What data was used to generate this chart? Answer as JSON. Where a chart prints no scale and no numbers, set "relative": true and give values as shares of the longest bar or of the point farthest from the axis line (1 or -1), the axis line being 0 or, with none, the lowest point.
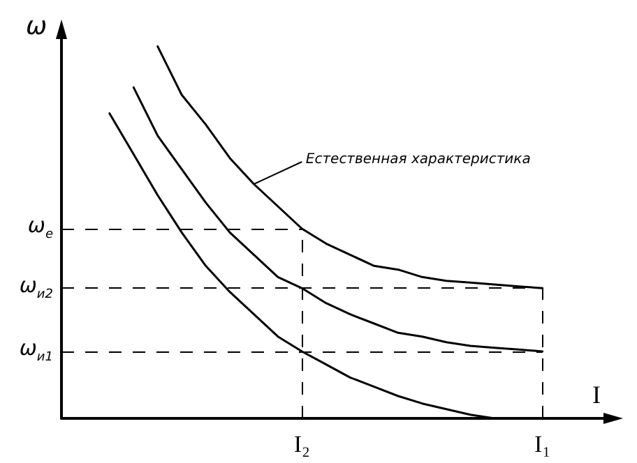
{
  "chart_data": {
    "type": "line",
    "relative": true,
    "ylabel": "ω",
    "xlabel": "I",
    "marker": "none",
    "categories": [
      null,
      null,
      null,
      null,
      null,
      null,
      null,
      null,
      null,
      null,
      "I₂",
      null,
      null,
      null,
      null,
      null,
      null,
      null,
      null,
      null,
      "I₁",
      null,
      null,
      null
    ],
    "series": [
      {
        "color": "#000000",
        "values": [
          null,
          null,
          null,
          null,
          1.0,
          0.87,
          0.79,
          0.7,
          0.63,
          0.57,
          0.51,
          0.47,
          0.44,
          0.41,
          0.4,
          0.38,
          0.37,
          0.365,
          0.36,
          0.355,
          0.35,
          null,
          null,
          null
        ]
      },
      {
        "color": "#000000",
        "values": [
          null,
          null,
          null,
          0.89,
          0.76,
          0.67,
          0.58,
          0.5,
          0.44,
          0.38,
          0.35,
          0.31,
          0.28,
          0.255,
          0.23,
          0.22,
          0.205,
          0.195,
          0.19,
          0.185,
          0.18,
          null,
          null,
          null
        ]
      },
      {
        "color": "#000000",
        "values": [
          null,
          null,
          0.82,
          0.71,
          0.6,
          0.5,
          0.41,
          0.34,
          0.28,
          0.22,
          0.18,
          0.145,
          0.11,
          0.085,
          0.06,
          0.04,
          0.025,
          0.01,
          0,
          0,
          0,
          null,
          null,
          null
        ]
      }
    ],
    "ref_lines": [
      {
        "axis": "y",
        "value": 0.51,
        "label": "ω$_{е}$",
        "line_style": "dashed",
        "color": "#000000"
      },
      {
        "axis": "y",
        "value": 0.35,
        "label": "ω$_{и2}$",
        "line_style": "dashed",
        "color": "#000000"
      },
      {
        "axis": "y",
        "value": 0.18,
        "label": "ω$_{и1}$",
        "line_style": "dashed",
        "color": "#000000"
      },
      {
        "axis": "x",
        "value": "I₂",
        "line_style": "dashed",
        "color": "#000000"
      },
      {
        "axis": "x",
        "value": "I₁",
        "line_style": "dashed",
        "color": "#000000"
      }
    ],
    "annotations": [
      "Естественная характеристика"
    ]
  }
}
